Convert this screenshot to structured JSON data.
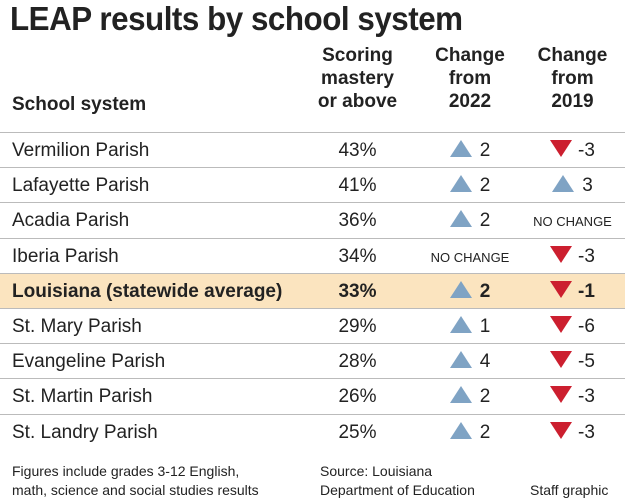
{
  "chart_data": {
    "type": "table",
    "title": "LEAP results by school system",
    "columns": [
      "School system",
      "Scoring mastery or above",
      "Change from 2022",
      "Change from 2019"
    ],
    "rows": [
      {
        "system": "Vermilion Parish",
        "mastery": "43%",
        "c2022": "2",
        "d2022": "up",
        "c2019": "-3",
        "d2019": "down"
      },
      {
        "system": "Lafayette Parish",
        "mastery": "41%",
        "c2022": "2",
        "d2022": "up",
        "c2019": "3",
        "d2019": "up"
      },
      {
        "system": "Acadia Parish",
        "mastery": "36%",
        "c2022": "2",
        "d2022": "up",
        "c2019": "NO CHANGE",
        "d2019": "none"
      },
      {
        "system": "Iberia Parish",
        "mastery": "34%",
        "c2022": "NO CHANGE",
        "d2022": "none",
        "c2019": "-3",
        "d2019": "down"
      },
      {
        "system": "Louisiana (statewide average)",
        "mastery": "33%",
        "c2022": "2",
        "d2022": "up",
        "c2019": "-1",
        "d2019": "down",
        "highlight": true
      },
      {
        "system": "St. Mary Parish",
        "mastery": "29%",
        "c2022": "1",
        "d2022": "up",
        "c2019": "-6",
        "d2019": "down"
      },
      {
        "system": "Evangeline Parish",
        "mastery": "28%",
        "c2022": "4",
        "d2022": "up",
        "c2019": "-5",
        "d2019": "down"
      },
      {
        "system": "St. Martin Parish",
        "mastery": "26%",
        "c2022": "2",
        "d2022": "up",
        "c2019": "-3",
        "d2019": "down"
      },
      {
        "system": "St. Landry Parish",
        "mastery": "25%",
        "c2022": "2",
        "d2022": "up",
        "c2019": "-3",
        "d2019": "down"
      }
    ],
    "colors": {
      "up": "#7fa3c4",
      "down": "#cc1f2f",
      "highlight": "#fbe4bf"
    }
  },
  "header": {
    "col1": "School system",
    "col2": [
      "Scoring",
      "mastery",
      "or above"
    ],
    "col3": [
      "Change",
      "from",
      "2022"
    ],
    "col4": [
      "Change",
      "from",
      "2019"
    ]
  },
  "footer": {
    "note": [
      "Figures include grades 3-12 English,",
      "math, science and social studies results"
    ],
    "source": [
      "Source: Louisiana",
      "Department of Education"
    ],
    "credit": "Staff graphic"
  }
}
